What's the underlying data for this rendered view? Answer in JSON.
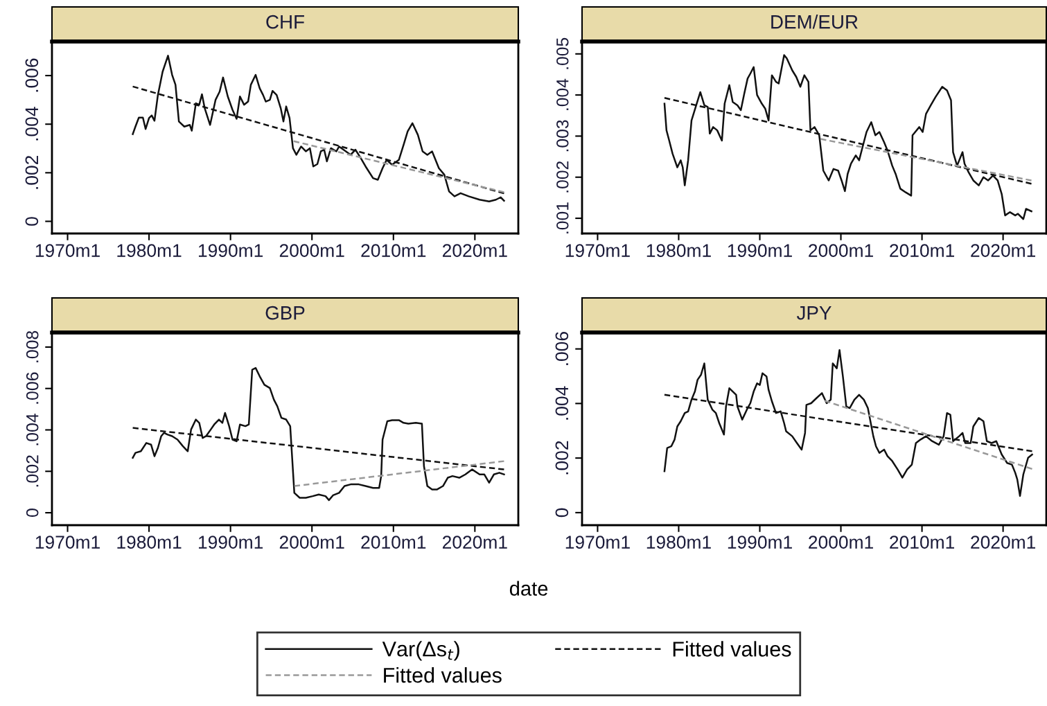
{
  "chart_data": [
    {
      "type": "line",
      "title": "CHF",
      "xlim": [
        "1968-02",
        "2025-05"
      ],
      "xticks": [
        {
          "value": "1970-01",
          "label": "1970m1"
        },
        {
          "value": "1980-01",
          "label": "1980m1"
        },
        {
          "value": "1990-01",
          "label": "1990m1"
        },
        {
          "value": "2000-01",
          "label": "2000m1"
        },
        {
          "value": "2010-01",
          "label": "2010m1"
        },
        {
          "value": "2020-01",
          "label": "2020m1"
        }
      ],
      "ylim": [
        -0.0005,
        0.0074
      ],
      "yticks": [
        {
          "value": 0,
          "label": "0"
        },
        {
          "value": 0.002,
          "label": ".002"
        },
        {
          "value": 0.004,
          "label": ".004"
        },
        {
          "value": 0.006,
          "label": ".006"
        }
      ],
      "grid": false,
      "legend": "bottom",
      "series": [
        {
          "name": "Var(Δs$_{t}$)",
          "color": "#111111",
          "line_style": "solid",
          "x": [
            "1978-01",
            "1978-05",
            "1978-10",
            "1979-04",
            "1979-08",
            "1980-01",
            "1980-05",
            "1980-09",
            "1981-02",
            "1981-09",
            "1982-05",
            "1982-11",
            "1983-04",
            "1983-09",
            "1984-05",
            "1985-01",
            "1985-04",
            "1985-10",
            "1986-03",
            "1986-07",
            "1986-11",
            "1987-07",
            "1988-03",
            "1988-09",
            "1989-02",
            "1989-09",
            "1990-04",
            "1990-10",
            "1991-03",
            "1991-09",
            "1992-03",
            "1992-07",
            "1993-02",
            "1993-08",
            "1994-01",
            "1994-05",
            "1994-11",
            "1995-03",
            "1995-09",
            "1996-03",
            "1996-07",
            "1996-11",
            "1997-04",
            "1997-09",
            "1998-02",
            "1998-09",
            "1999-04",
            "1999-10",
            "2000-03",
            "2000-09",
            "2001-02",
            "2001-07",
            "2001-11",
            "2002-05",
            "2003-01",
            "2003-05",
            "2004-03",
            "2004-10",
            "2005-05",
            "2006-01",
            "2006-08",
            "2007-07",
            "2008-02",
            "2008-09",
            "2009-03",
            "2009-11",
            "2010-09",
            "2011-04",
            "2011-10",
            "2012-05",
            "2013-01",
            "2013-08",
            "2014-03",
            "2014-10",
            "2015-08",
            "2016-04",
            "2016-11",
            "2017-07",
            "2018-04",
            "2019-04",
            "2020-08",
            "2021-10",
            "2022-08",
            "2023-03",
            "2023-08"
          ],
          "values": [
            0.00359,
            0.0039,
            0.00427,
            0.00427,
            0.0038,
            0.00425,
            0.00436,
            0.00414,
            0.0052,
            0.00616,
            0.00682,
            0.00603,
            0.00562,
            0.00411,
            0.0039,
            0.00397,
            0.00373,
            0.00486,
            0.0048,
            0.00523,
            0.00466,
            0.00397,
            0.005,
            0.00534,
            0.00592,
            0.00514,
            0.00459,
            0.00422,
            0.00514,
            0.0048,
            0.00493,
            0.00562,
            0.00603,
            0.00548,
            0.0052,
            0.00493,
            0.005,
            0.00537,
            0.0052,
            0.00466,
            0.00411,
            0.00473,
            0.00425,
            0.00301,
            0.00274,
            0.00308,
            0.00288,
            0.00301,
            0.00226,
            0.00236,
            0.00288,
            0.00295,
            0.00247,
            0.00301,
            0.00288,
            0.00308,
            0.00288,
            0.00274,
            0.00295,
            0.0026,
            0.00226,
            0.00178,
            0.00171,
            0.00219,
            0.00253,
            0.00233,
            0.00253,
            0.00315,
            0.0037,
            0.00404,
            0.00356,
            0.00288,
            0.00274,
            0.00288,
            0.00219,
            0.00192,
            0.00123,
            0.00103,
            0.00116,
            0.00103,
            0.00089,
            0.00082,
            0.00089,
            0.00099,
            0.00085
          ]
        },
        {
          "name": "Fitted values",
          "color": "#111111",
          "line_style": "dashed",
          "x": [
            "1978-01",
            "2023-08"
          ],
          "values": [
            0.00555,
            0.00115
          ]
        },
        {
          "name": "Fitted values",
          "color": "#999999",
          "line_style": "dashed",
          "x": [
            "1997-10",
            "2023-08"
          ],
          "values": [
            0.0033,
            0.0012
          ]
        }
      ]
    },
    {
      "type": "line",
      "title": "DEM/EUR",
      "xlim": [
        "1968-02",
        "2025-05"
      ],
      "xticks": [
        {
          "value": "1970-01",
          "label": "1970m1"
        },
        {
          "value": "1980-01",
          "label": "1980m1"
        },
        {
          "value": "1990-01",
          "label": "1990m1"
        },
        {
          "value": "2000-01",
          "label": "2000m1"
        },
        {
          "value": "2010-01",
          "label": "2010m1"
        },
        {
          "value": "2020-01",
          "label": "2020m1"
        }
      ],
      "ylim": [
        0.00063,
        0.0053
      ],
      "yticks": [
        {
          "value": 0.001,
          "label": ".001"
        },
        {
          "value": 0.002,
          "label": ".002"
        },
        {
          "value": 0.003,
          "label": ".003"
        },
        {
          "value": 0.004,
          "label": ".004"
        },
        {
          "value": 0.005,
          "label": ".005"
        }
      ],
      "grid": false,
      "series": [
        {
          "color": "#111111",
          "line_style": "solid",
          "x": [
            "1978-04",
            "1978-07",
            "1978-11",
            "1979-04",
            "1979-11",
            "1980-04",
            "1980-07",
            "1980-10",
            "1981-03",
            "1981-08",
            "1982-03",
            "1982-09",
            "1983-03",
            "1983-08",
            "1983-11",
            "1984-04",
            "1984-10",
            "1985-05",
            "1985-09",
            "1986-04",
            "1986-09",
            "1987-04",
            "1987-09",
            "1988-02",
            "1988-07",
            "1988-11",
            "1989-04",
            "1989-09",
            "1990-04",
            "1990-09",
            "1991-02",
            "1991-07",
            "1992-01",
            "1992-05",
            "1993-01",
            "1993-05",
            "1994-01",
            "1994-07",
            "1995-01",
            "1995-07",
            "1996-01",
            "1996-04",
            "1996-10",
            "1997-05",
            "1997-11",
            "1998-07",
            "1999-02",
            "1999-09",
            "2000-02",
            "2000-07",
            "2000-11",
            "2001-04",
            "2001-11",
            "2002-04",
            "2002-09",
            "2003-03",
            "2003-10",
            "2004-04",
            "2004-10",
            "2005-05",
            "2005-10",
            "2006-05",
            "2006-10",
            "2007-05",
            "2008-01",
            "2008-09",
            "2008-11",
            "2009-09",
            "2010-02",
            "2010-07",
            "2011-02",
            "2011-09",
            "2012-07",
            "2013-02",
            "2013-08",
            "2013-11",
            "2014-05",
            "2015-01",
            "2015-04",
            "2015-10",
            "2016-05",
            "2017-01",
            "2017-08",
            "2018-03",
            "2018-10",
            "2019-05",
            "2019-11",
            "2020-04",
            "2020-11",
            "2021-07",
            "2021-11",
            "2022-07",
            "2022-11",
            "2023-07"
          ],
          "values": [
            0.00379,
            0.00314,
            0.00289,
            0.00257,
            0.00224,
            0.00241,
            0.00224,
            0.0018,
            0.00241,
            0.00338,
            0.00375,
            0.00407,
            0.00375,
            0.00371,
            0.00306,
            0.00322,
            0.00314,
            0.00289,
            0.00379,
            0.00424,
            0.00383,
            0.00375,
            0.00363,
            0.00403,
            0.0044,
            0.00452,
            0.00468,
            0.004,
            0.00379,
            0.00367,
            0.00338,
            0.00448,
            0.00432,
            0.00428,
            0.00497,
            0.00489,
            0.0046,
            0.00444,
            0.0042,
            0.00448,
            0.00432,
            0.00314,
            0.00322,
            0.00302,
            0.00216,
            0.00192,
            0.0022,
            0.00216,
            0.00192,
            0.00166,
            0.00208,
            0.00233,
            0.00253,
            0.00241,
            0.00273,
            0.0031,
            0.00334,
            0.00302,
            0.0031,
            0.00285,
            0.00265,
            0.00228,
            0.00208,
            0.00172,
            0.00163,
            0.00155,
            0.00302,
            0.00322,
            0.0031,
            0.00354,
            0.00375,
            0.00395,
            0.0042,
            0.00411,
            0.00387,
            0.00261,
            0.00228,
            0.00261,
            0.00233,
            0.00212,
            0.00192,
            0.0018,
            0.002,
            0.00192,
            0.00204,
            0.00192,
            0.00159,
            0.00107,
            0.00115,
            0.00107,
            0.00111,
            0.00098,
            0.00123,
            0.00117
          ]
        },
        {
          "color": "#111111",
          "line_style": "dashed",
          "x": [
            "1978-04",
            "2023-07"
          ],
          "values": [
            0.00393,
            0.00184
          ]
        },
        {
          "color": "#999999",
          "line_style": "dashed",
          "x": [
            "1997-07",
            "2023-07"
          ],
          "values": [
            0.00293,
            0.00192
          ]
        }
      ]
    },
    {
      "type": "line",
      "title": "GBP",
      "xlim": [
        "1968-02",
        "2025-05"
      ],
      "xticks": [
        {
          "value": "1970-01",
          "label": "1970m1"
        },
        {
          "value": "1980-01",
          "label": "1980m1"
        },
        {
          "value": "1990-01",
          "label": "1990m1"
        },
        {
          "value": "2000-01",
          "label": "2000m1"
        },
        {
          "value": "2010-01",
          "label": "2010m1"
        },
        {
          "value": "2020-01",
          "label": "2020m1"
        }
      ],
      "ylim": [
        -0.0006,
        0.0087
      ],
      "yticks": [
        {
          "value": 0,
          "label": "0"
        },
        {
          "value": 0.002,
          "label": ".002"
        },
        {
          "value": 0.004,
          "label": ".004"
        },
        {
          "value": 0.006,
          "label": ".006"
        },
        {
          "value": 0.008,
          "label": ".008"
        }
      ],
      "grid": false,
      "series": [
        {
          "color": "#111111",
          "line_style": "solid",
          "x": [
            "1978-01",
            "1978-05",
            "1979-01",
            "1979-09",
            "1980-04",
            "1980-09",
            "1981-02",
            "1981-07",
            "1981-11",
            "1982-04",
            "1982-11",
            "1983-07",
            "1984-03",
            "1984-10",
            "1985-03",
            "1985-10",
            "1986-03",
            "1986-08",
            "1987-01",
            "1987-08",
            "1988-01",
            "1988-08",
            "1989-01",
            "1989-05",
            "1989-11",
            "1990-04",
            "1990-10",
            "1991-03",
            "1991-11",
            "1992-04",
            "1992-09",
            "1993-02",
            "1993-08",
            "1994-03",
            "1994-11",
            "1995-05",
            "1995-10",
            "1996-04",
            "1996-11",
            "1997-05",
            "1997-08",
            "1997-11",
            "1998-07",
            "1999-04",
            "2000-02",
            "2000-11",
            "2001-09",
            "2002-02",
            "2002-08",
            "2003-05",
            "2004-01",
            "2004-10",
            "2005-10",
            "2006-08",
            "2007-07",
            "2008-04",
            "2008-07",
            "2008-09",
            "2009-04",
            "2009-11",
            "2010-09",
            "2011-04",
            "2011-11",
            "2012-10",
            "2013-07",
            "2013-10",
            "2014-03",
            "2014-10",
            "2015-05",
            "2016-02",
            "2016-09",
            "2017-04",
            "2018-02",
            "2018-11",
            "2019-09",
            "2020-08",
            "2021-03",
            "2021-10",
            "2022-05",
            "2023-01",
            "2023-08"
          ],
          "values": [
            0.00265,
            0.00289,
            0.00297,
            0.00337,
            0.00329,
            0.00273,
            0.00313,
            0.0037,
            0.00386,
            0.00378,
            0.0037,
            0.00353,
            0.00321,
            0.00297,
            0.00402,
            0.0045,
            0.00434,
            0.00361,
            0.0037,
            0.00402,
            0.00426,
            0.0045,
            0.00434,
            0.00482,
            0.00418,
            0.00353,
            0.00345,
            0.00426,
            0.00418,
            0.00426,
            0.00691,
            0.00699,
            0.00659,
            0.00618,
            0.00602,
            0.00546,
            0.00514,
            0.00458,
            0.0045,
            0.00418,
            0.00257,
            0.00096,
            0.00072,
            0.00072,
            0.0008,
            0.00088,
            0.0008,
            0.00061,
            0.00084,
            0.00096,
            0.00129,
            0.00137,
            0.00137,
            0.00129,
            0.0012,
            0.0012,
            0.00177,
            0.00353,
            0.00442,
            0.00447,
            0.00447,
            0.00434,
            0.0043,
            0.00434,
            0.0043,
            0.00225,
            0.00129,
            0.00112,
            0.00112,
            0.00129,
            0.00169,
            0.00177,
            0.00169,
            0.00185,
            0.00209,
            0.00185,
            0.00185,
            0.00145,
            0.00185,
            0.00193,
            0.00185
          ]
        },
        {
          "color": "#111111",
          "line_style": "dashed",
          "x": [
            "1978-01",
            "2023-08"
          ],
          "values": [
            0.0041,
            0.00209
          ]
        },
        {
          "color": "#999999",
          "line_style": "dashed",
          "x": [
            "1997-11",
            "2023-08"
          ],
          "values": [
            0.00129,
            0.00249
          ]
        }
      ]
    },
    {
      "type": "line",
      "title": "JPY",
      "xlabel": "date",
      "xlim": [
        "1968-02",
        "2025-05"
      ],
      "xticks": [
        {
          "value": "1970-01",
          "label": "1970m1"
        },
        {
          "value": "1980-01",
          "label": "1980m1"
        },
        {
          "value": "1990-01",
          "label": "1990m1"
        },
        {
          "value": "2000-01",
          "label": "2000m1"
        },
        {
          "value": "2010-01",
          "label": "2010m1"
        },
        {
          "value": "2020-01",
          "label": "2020m1"
        }
      ],
      "ylim": [
        -0.00046,
        0.0066
      ],
      "yticks": [
        {
          "value": 0,
          "label": "0"
        },
        {
          "value": 0.002,
          "label": ".002"
        },
        {
          "value": 0.004,
          "label": ".004"
        },
        {
          "value": 0.006,
          "label": ".006"
        }
      ],
      "grid": false,
      "series": [
        {
          "color": "#111111",
          "line_style": "solid",
          "x": [
            "1978-04",
            "1978-08",
            "1979-02",
            "1979-07",
            "1979-11",
            "1980-04",
            "1980-10",
            "1981-03",
            "1981-08",
            "1982-01",
            "1982-05",
            "1982-10",
            "1983-03",
            "1983-08",
            "1984-03",
            "1984-08",
            "1985-01",
            "1985-08",
            "1985-11",
            "1986-04",
            "1986-09",
            "1987-02",
            "1987-04",
            "1987-11",
            "1988-07",
            "1988-11",
            "1989-04",
            "1989-09",
            "1990-01",
            "1990-05",
            "1990-11",
            "1991-02",
            "1991-07",
            "1992-01",
            "1992-08",
            "1993-01",
            "1993-04",
            "1994-01",
            "1994-08",
            "1995-03",
            "1995-08",
            "1995-10",
            "1996-05",
            "1997-01",
            "1997-09",
            "1998-04",
            "1998-10",
            "1999-01",
            "1999-07",
            "1999-11",
            "2000-04",
            "2000-09",
            "2001-02",
            "2001-09",
            "2002-04",
            "2002-11",
            "2003-05",
            "2004-01",
            "2004-05",
            "2004-10",
            "2005-05",
            "2005-10",
            "2006-05",
            "2007-01",
            "2007-08",
            "2008-03",
            "2008-10",
            "2009-04",
            "2009-11",
            "2010-07",
            "2011-04",
            "2012-02",
            "2012-09",
            "2013-02",
            "2013-07",
            "2013-11",
            "2014-08",
            "2015-01",
            "2015-05",
            "2016-01",
            "2016-05",
            "2017-01",
            "2017-08",
            "2018-01",
            "2018-08",
            "2019-03",
            "2019-11",
            "2020-07",
            "2021-02",
            "2021-07",
            "2021-10",
            "2022-02",
            "2022-07",
            "2023-02",
            "2023-08"
          ],
          "values": [
            0.00152,
            0.00237,
            0.00243,
            0.00268,
            0.00316,
            0.00335,
            0.00365,
            0.00371,
            0.00414,
            0.00444,
            0.00487,
            0.00505,
            0.00547,
            0.00414,
            0.00377,
            0.00365,
            0.00328,
            0.00286,
            0.00389,
            0.00456,
            0.00444,
            0.00432,
            0.00389,
            0.00341,
            0.00383,
            0.00401,
            0.00444,
            0.00474,
            0.00468,
            0.00511,
            0.00499,
            0.0045,
            0.00408,
            0.00365,
            0.00371,
            0.00328,
            0.00298,
            0.0028,
            0.00255,
            0.00231,
            0.00292,
            0.00395,
            0.00401,
            0.0042,
            0.00438,
            0.00401,
            0.00414,
            0.00547,
            0.00529,
            0.00596,
            0.00499,
            0.00389,
            0.00383,
            0.00414,
            0.00432,
            0.00414,
            0.00383,
            0.0028,
            0.00243,
            0.00219,
            0.00231,
            0.00207,
            0.00189,
            0.00158,
            0.00128,
            0.00158,
            0.00176,
            0.00255,
            0.00268,
            0.0028,
            0.00262,
            0.00249,
            0.0028,
            0.00365,
            0.00359,
            0.00262,
            0.0028,
            0.00292,
            0.00255,
            0.00255,
            0.00316,
            0.00347,
            0.00335,
            0.00262,
            0.00255,
            0.00262,
            0.00213,
            0.00182,
            0.00176,
            0.00146,
            0.00122,
            0.00061,
            0.0014,
            0.00201,
            0.00213
          ]
        },
        {
          "color": "#111111",
          "line_style": "dashed",
          "x": [
            "1978-04",
            "2023-08"
          ],
          "values": [
            0.00432,
            0.00225
          ]
        },
        {
          "color": "#999999",
          "line_style": "dashed",
          "x": [
            "1998-01",
            "2023-08"
          ],
          "values": [
            0.0041,
            0.0016
          ]
        }
      ]
    }
  ]
}
